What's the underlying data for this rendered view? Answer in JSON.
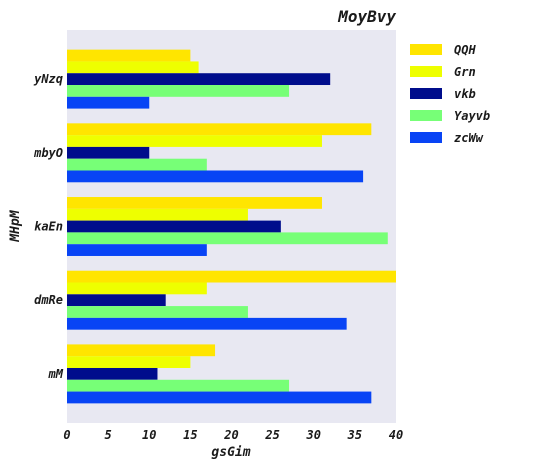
{
  "chart_data": {
    "type": "bar",
    "orientation": "horizontal",
    "title": "MoyBvy",
    "xlabel": "gsGim",
    "ylabel": "MHpM",
    "categories": [
      "mM",
      "dmRe",
      "kaEn",
      "mbyO",
      "yNzq"
    ],
    "xlim": [
      0,
      40
    ],
    "xticks": [
      0,
      5,
      10,
      15,
      20,
      25,
      30,
      35,
      40
    ],
    "grid": false,
    "legend_position": "right",
    "series": [
      {
        "name": "QQH",
        "color": "#FFE500",
        "values": [
          18,
          40,
          31,
          37,
          15
        ]
      },
      {
        "name": "Grn",
        "color": "#EEFF00",
        "values": [
          15,
          17,
          22,
          31,
          16
        ]
      },
      {
        "name": "vkb",
        "color": "#000D8C",
        "values": [
          11,
          12,
          26,
          10,
          32
        ]
      },
      {
        "name": "Yayvb",
        "color": "#77FF77",
        "values": [
          27,
          22,
          39,
          17,
          27
        ]
      },
      {
        "name": "zcWw",
        "color": "#0844F5",
        "values": [
          37,
          34,
          17,
          36,
          10
        ]
      }
    ]
  }
}
